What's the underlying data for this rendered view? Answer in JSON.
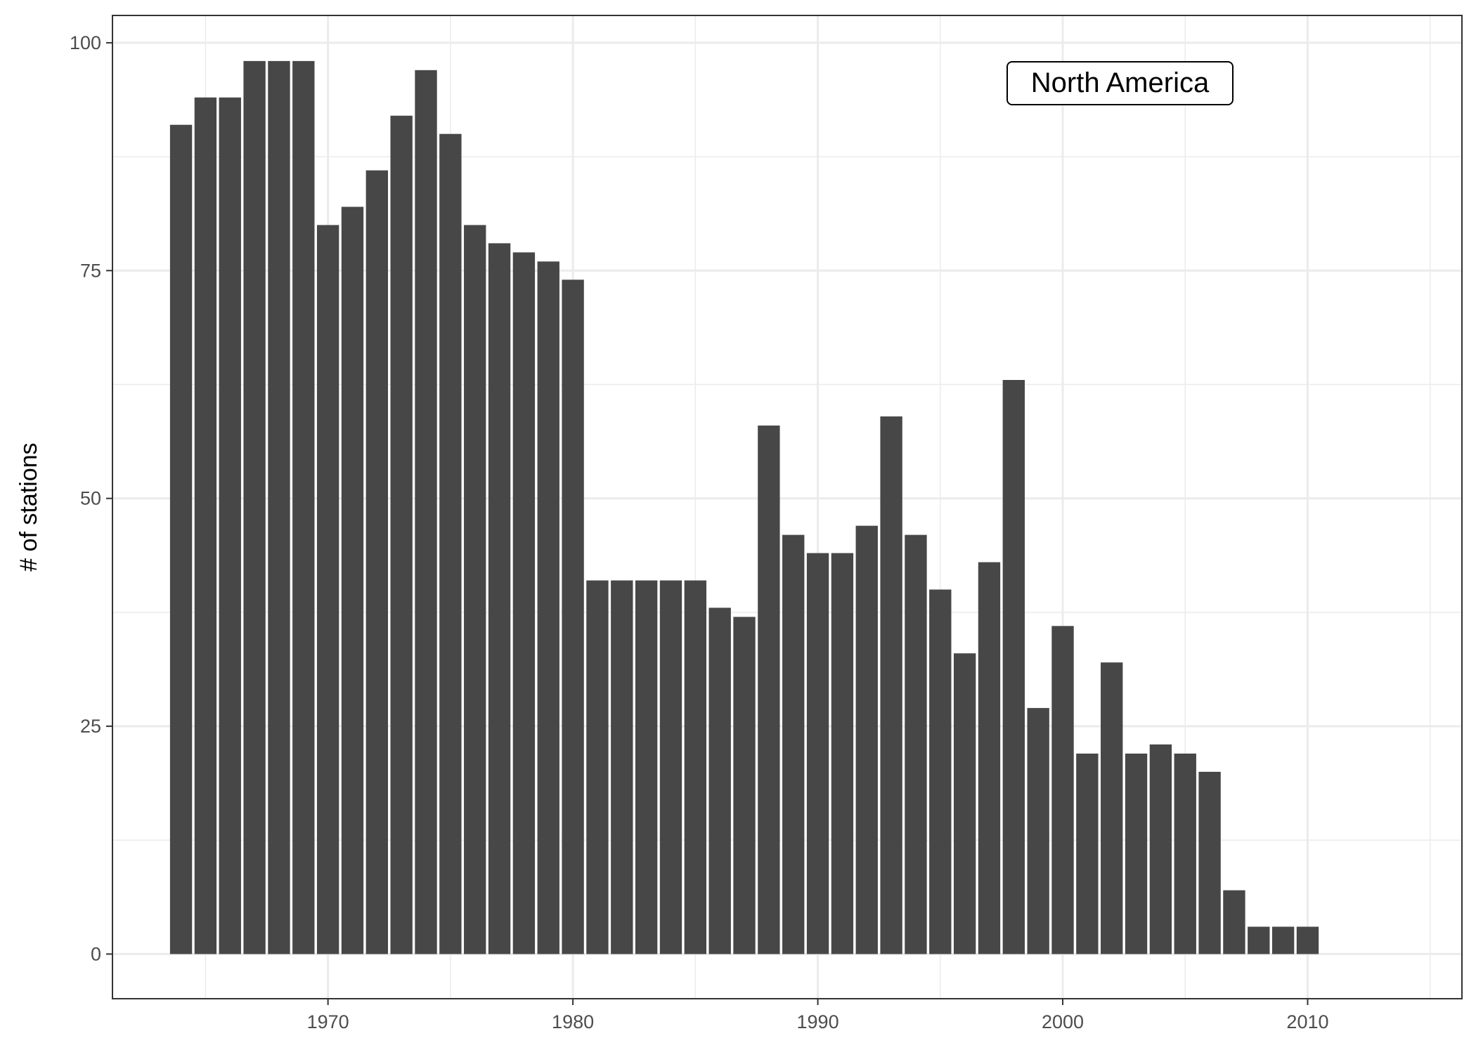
{
  "chart_data": {
    "type": "bar",
    "xlabel": "",
    "ylabel": "# of stations",
    "annotation": "North America",
    "xlim": [
      1961.2,
      2016.3
    ],
    "ylim": [
      -4.9,
      103
    ],
    "x_ticks": [
      1970,
      1980,
      1990,
      2000,
      2010
    ],
    "x_minor_ticks": [
      1965,
      1975,
      1985,
      1995,
      2005,
      2015
    ],
    "y_ticks": [
      0,
      25,
      50,
      75,
      100
    ],
    "y_minor_ticks": [
      12.5,
      37.5,
      62.5,
      87.5
    ],
    "grid": true,
    "legend": "none",
    "bar_color": "#474747",
    "categories": [
      1964,
      1965,
      1966,
      1967,
      1968,
      1969,
      1970,
      1971,
      1972,
      1973,
      1974,
      1975,
      1976,
      1977,
      1978,
      1979,
      1980,
      1981,
      1982,
      1983,
      1984,
      1985,
      1986,
      1987,
      1988,
      1989,
      1990,
      1991,
      1992,
      1993,
      1994,
      1995,
      1996,
      1997,
      1998,
      1999,
      2000,
      2001,
      2002,
      2003,
      2004,
      2005,
      2006,
      2007,
      2008,
      2009,
      2010
    ],
    "values": [
      91,
      94,
      94,
      98,
      98,
      98,
      80,
      82,
      86,
      92,
      97,
      90,
      80,
      78,
      77,
      76,
      74,
      41,
      41,
      41,
      41,
      41,
      38,
      37,
      58,
      46,
      44,
      44,
      47,
      59,
      46,
      40,
      33,
      43,
      63,
      27,
      36,
      22,
      32,
      22,
      23,
      22,
      20,
      7,
      3,
      3,
      3
    ]
  }
}
